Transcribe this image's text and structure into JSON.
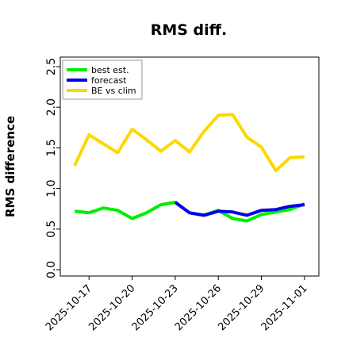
{
  "chart_data": {
    "type": "line",
    "title": "RMS diff.",
    "xlabel": "",
    "ylabel": "RMS difference",
    "ylim": [
      0,
      2.5
    ],
    "yticks": [
      "0.0",
      "0.5",
      "1.0",
      "1.5",
      "2.0",
      "2.5"
    ],
    "xticks": [
      {
        "label": "2025-10-17",
        "date": "2025-10-17",
        "color": "#000000"
      },
      {
        "label": "2025-10-20",
        "date": "2025-10-20",
        "color": "#000000"
      },
      {
        "label": "2025-10-23",
        "date": "2025-10-23",
        "color": "#2e8b2e"
      },
      {
        "label": "2025-10-26",
        "date": "2025-10-26",
        "color": "#000000"
      },
      {
        "label": "2025-10-29",
        "date": "2025-10-29",
        "color": "#000000"
      },
      {
        "label": "2025-11-01",
        "date": "2025-11-01",
        "color": "#000000"
      }
    ],
    "xlim": [
      "2025-10-15",
      "2025-11-02"
    ],
    "grid": false,
    "legend_position": "top-left",
    "series": [
      {
        "name": "best est.",
        "color": "#00ee00",
        "x": [
          "2025-10-16",
          "2025-10-17",
          "2025-10-18",
          "2025-10-19",
          "2025-10-20",
          "2025-10-21",
          "2025-10-22",
          "2025-10-23",
          "2025-10-24",
          "2025-10-25",
          "2025-10-26",
          "2025-10-27",
          "2025-10-28",
          "2025-10-29",
          "2025-10-30",
          "2025-10-31",
          "2025-11-01"
        ],
        "y": [
          0.72,
          0.7,
          0.76,
          0.73,
          0.63,
          0.7,
          0.8,
          0.83,
          0.7,
          0.67,
          0.73,
          0.63,
          0.6,
          0.68,
          0.71,
          0.74,
          0.81
        ]
      },
      {
        "name": "forecast",
        "color": "#0000ee",
        "x": [
          "2025-10-23",
          "2025-10-24",
          "2025-10-25",
          "2025-10-26",
          "2025-10-27",
          "2025-10-28",
          "2025-10-29",
          "2025-10-30",
          "2025-10-31",
          "2025-11-01"
        ],
        "y": [
          0.83,
          0.7,
          0.67,
          0.72,
          0.71,
          0.67,
          0.73,
          0.74,
          0.78,
          0.8
        ]
      },
      {
        "name": "BE vs clim",
        "color": "#ffd700",
        "x": [
          "2025-10-16",
          "2025-10-17",
          "2025-10-18",
          "2025-10-19",
          "2025-10-20",
          "2025-10-21",
          "2025-10-22",
          "2025-10-23",
          "2025-10-24",
          "2025-10-25",
          "2025-10-26",
          "2025-10-27",
          "2025-10-28",
          "2025-10-29",
          "2025-10-30",
          "2025-10-31",
          "2025-11-01"
        ],
        "y": [
          1.28,
          1.66,
          1.55,
          1.44,
          1.73,
          1.6,
          1.46,
          1.59,
          1.45,
          1.7,
          1.9,
          1.91,
          1.63,
          1.51,
          1.22,
          1.38,
          1.39
        ]
      }
    ]
  }
}
